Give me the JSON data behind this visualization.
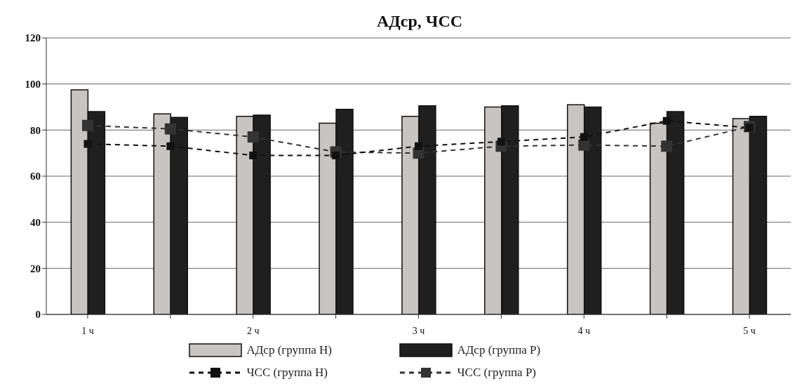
{
  "chart_data": {
    "type": "bar",
    "title": "АДср, ЧСС",
    "categories": [
      "1 ч",
      null,
      "2 ч",
      null,
      "3 ч",
      null,
      "4 ч",
      null,
      "5 ч"
    ],
    "series": [
      {
        "name": "АДср (группа Н)",
        "color": "#c8c4c1",
        "values": [
          97.5,
          87,
          86,
          83,
          86,
          90,
          91,
          83,
          85
        ]
      },
      {
        "name": "АДср (группа Р)",
        "color": "#1f1f1f",
        "values": [
          88,
          85.5,
          86.5,
          89,
          90.5,
          90.5,
          90,
          88,
          86
        ]
      },
      {
        "name": "ЧСС (группа Н)",
        "type": "line",
        "color": "#111111",
        "line_style": "dashed",
        "values": [
          74,
          73,
          69,
          69,
          73,
          75,
          77,
          84,
          81
        ]
      },
      {
        "name": "ЧСС (группа Р)",
        "type": "line",
        "color": "#333333",
        "line_style": "dashed",
        "values": [
          82,
          80.5,
          77,
          70.5,
          70,
          73,
          73.5,
          73,
          81.5
        ]
      }
    ],
    "ylim": [
      0,
      120
    ],
    "yticks": [
      0,
      20,
      40,
      60,
      80,
      100,
      120
    ],
    "grid": "y",
    "legend": "bottom",
    "marker": "square"
  }
}
